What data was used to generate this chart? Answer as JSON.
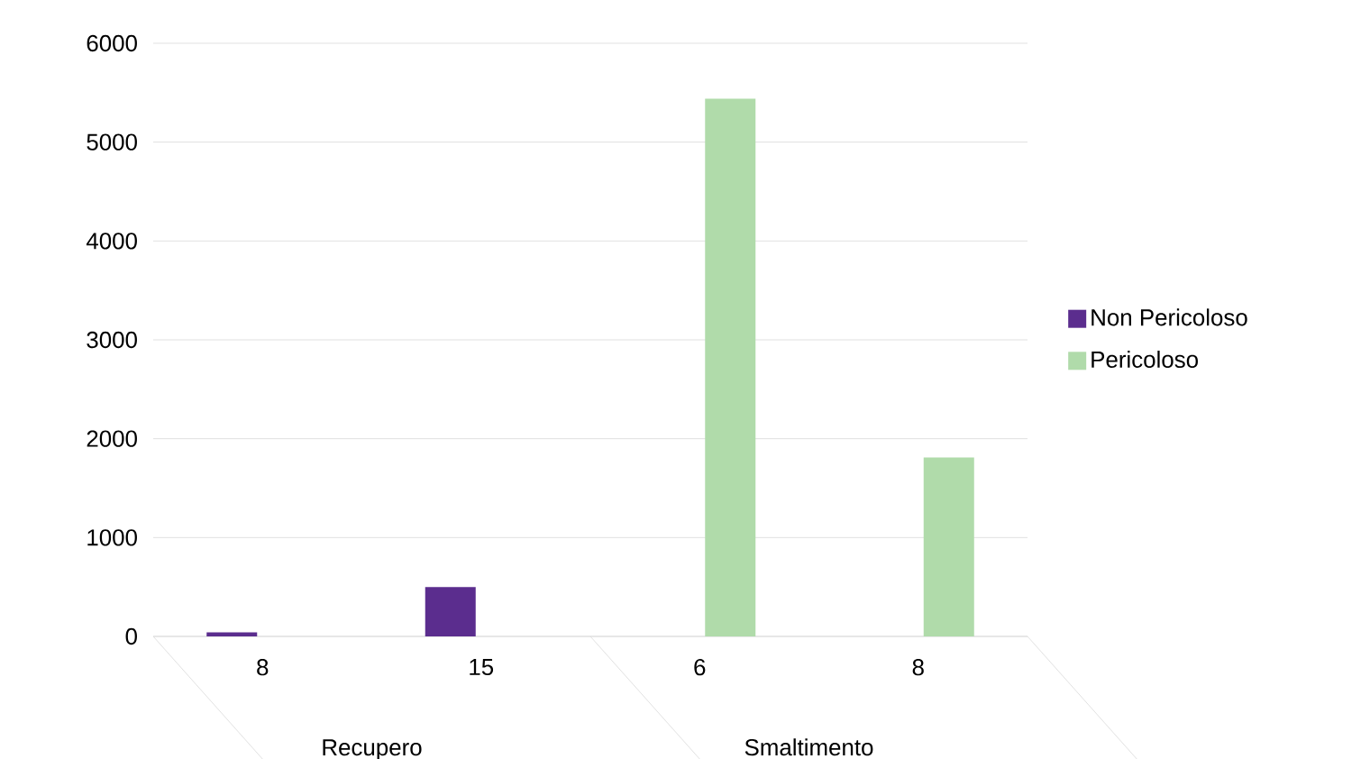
{
  "chart_data": {
    "type": "bar",
    "categories": [
      "8",
      "15",
      "6",
      "8"
    ],
    "annotations": [
      "Recupero",
      "Smaltimento"
    ],
    "series": [
      {
        "name": "Non Pericoloso",
        "color": "#5b2d8e",
        "values": [
          40,
          500,
          null,
          null
        ]
      },
      {
        "name": "Pericoloso",
        "color": "#b0dbaa",
        "values": [
          null,
          null,
          5440,
          1810
        ]
      }
    ],
    "ylim": [
      0,
      6000
    ],
    "yticks": [
      0,
      1000,
      2000,
      3000,
      4000,
      5000,
      6000
    ],
    "grid": "y",
    "legend": "right"
  }
}
